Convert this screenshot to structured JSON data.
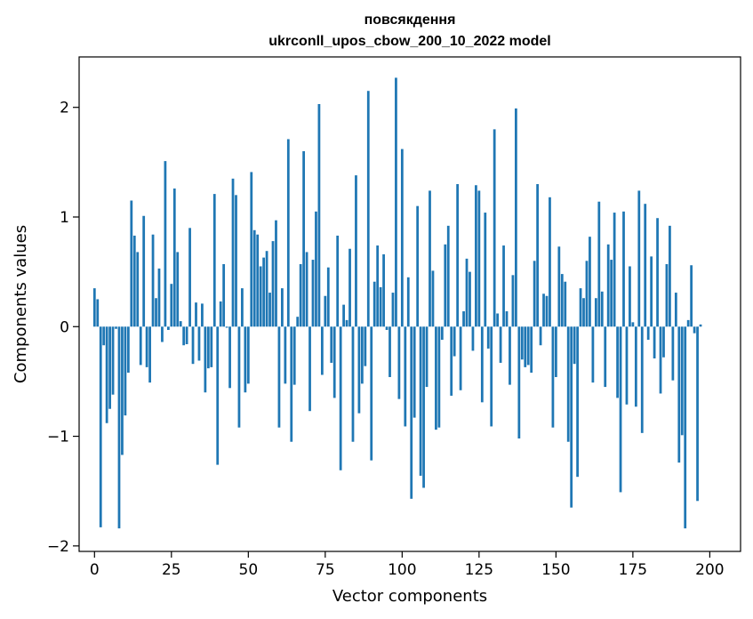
{
  "chart_data": {
    "type": "bar",
    "title": "повсякдення",
    "subtitle": "ukrconll_upos_cbow_200_10_2022 model",
    "xlabel": "Vector components",
    "ylabel": "Components values",
    "xlim": [
      -5,
      210
    ],
    "ylim": [
      -2.05,
      2.46
    ],
    "xticks": [
      0,
      25,
      50,
      75,
      100,
      125,
      150,
      175,
      200
    ],
    "xtick_labels": [
      "0",
      "25",
      "50",
      "75",
      "100",
      "125",
      "150",
      "175",
      "200"
    ],
    "yticks": [
      -2,
      -1,
      0,
      1,
      2
    ],
    "ytick_labels": [
      "−2",
      "−1",
      "0",
      "1",
      "2"
    ],
    "grid": false,
    "bar_color": "#1f77b4",
    "values": [
      0.35,
      0.25,
      -1.83,
      -0.17,
      -0.88,
      -0.75,
      -0.62,
      -0.02,
      -1.84,
      -1.17,
      -0.81,
      -0.42,
      1.15,
      0.83,
      0.68,
      -0.35,
      1.01,
      -0.37,
      -0.51,
      0.84,
      0.26,
      0.53,
      -0.14,
      1.51,
      -0.03,
      0.39,
      1.26,
      0.68,
      0.05,
      -0.17,
      -0.16,
      0.9,
      -0.34,
      0.22,
      -0.31,
      0.21,
      -0.6,
      -0.38,
      -0.37,
      1.21,
      -1.26,
      0.23,
      0.57,
      -0.01,
      -0.56,
      1.35,
      1.2,
      -0.92,
      0.35,
      -0.6,
      -0.52,
      1.41,
      0.88,
      0.84,
      0.55,
      0.63,
      0.69,
      0.31,
      0.78,
      0.97,
      -0.92,
      0.35,
      -0.52,
      1.71,
      -1.05,
      -0.53,
      0.09,
      0.57,
      1.6,
      0.68,
      -0.77,
      0.61,
      1.05,
      2.03,
      -0.44,
      0.28,
      0.54,
      -0.33,
      -0.65,
      0.83,
      -1.31,
      0.2,
      0.06,
      0.71,
      -1.05,
      1.38,
      -0.79,
      -0.52,
      -0.36,
      2.15,
      -1.22,
      0.41,
      0.74,
      0.36,
      0.66,
      -0.03,
      -0.46,
      0.31,
      2.27,
      -0.66,
      1.62,
      -0.91,
      0.45,
      -1.57,
      -0.83,
      1.1,
      -1.36,
      -1.47,
      -0.55,
      1.24,
      0.51,
      -0.94,
      -0.92,
      -0.12,
      0.75,
      0.92,
      -0.63,
      -0.27,
      1.3,
      -0.58,
      0.14,
      0.62,
      0.5,
      -0.22,
      1.29,
      1.24,
      -0.69,
      1.04,
      -0.2,
      -0.91,
      1.8,
      0.12,
      -0.33,
      0.74,
      0.14,
      -0.53,
      0.47,
      1.99,
      -1.02,
      -0.3,
      -0.37,
      -0.35,
      -0.42,
      0.6,
      1.3,
      -0.17,
      0.3,
      0.28,
      1.18,
      -0.92,
      -0.46,
      0.73,
      0.48,
      0.41,
      -1.05,
      -1.65,
      -0.34,
      -1.37,
      0.35,
      0.26,
      0.6,
      0.82,
      -0.51,
      0.26,
      1.14,
      0.32,
      -0.55,
      0.75,
      0.61,
      1.04,
      -0.65,
      -1.51,
      1.05,
      -0.71,
      0.55,
      0.04,
      -0.73,
      1.24,
      -0.97,
      1.12,
      -0.12,
      0.64,
      -0.29,
      0.99,
      -0.61,
      -0.28,
      0.57,
      0.92,
      -0.49,
      0.31,
      -1.24,
      -0.99,
      -1.84,
      0.06,
      0.56,
      -0.06,
      -1.59,
      0.02
    ]
  }
}
